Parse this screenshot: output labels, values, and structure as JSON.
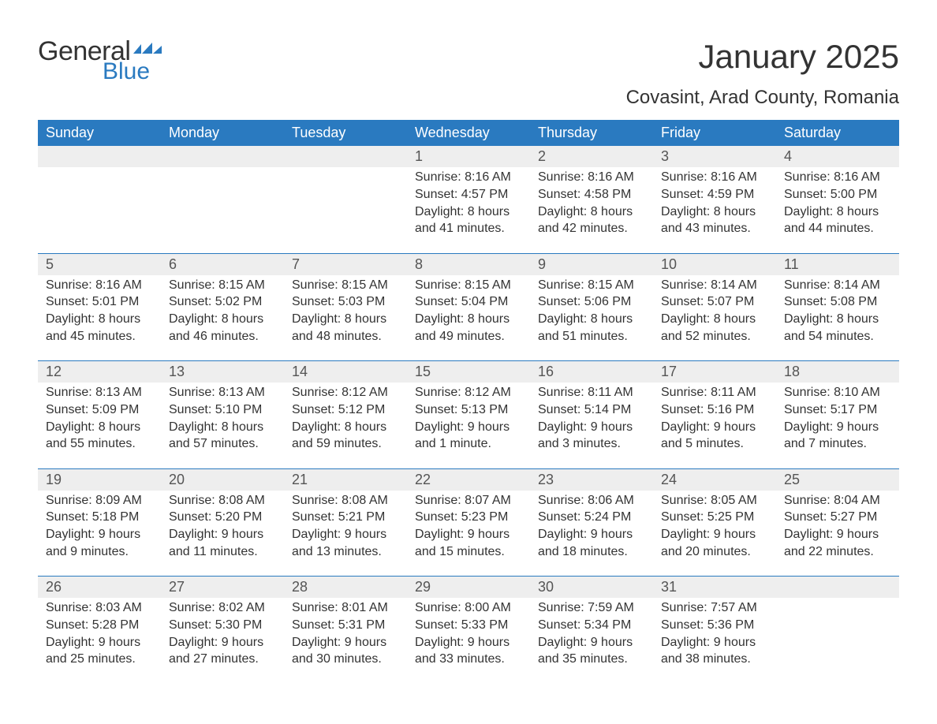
{
  "brand": {
    "general": "General",
    "blue": "Blue"
  },
  "colors": {
    "header_bg": "#2a7ac0",
    "header_text": "#ffffff",
    "daynum_bg": "#eeeeee",
    "rule": "#2a7ac0",
    "body_text": "#333333",
    "page_bg": "#ffffff"
  },
  "title": "January 2025",
  "subtitle": "Covasint, Arad County, Romania",
  "daynames": [
    "Sunday",
    "Monday",
    "Tuesday",
    "Wednesday",
    "Thursday",
    "Friday",
    "Saturday"
  ],
  "weeks": [
    [
      null,
      null,
      null,
      {
        "n": "1",
        "sunrise": "8:16 AM",
        "sunset": "4:57 PM",
        "dh": "8",
        "dm": "41"
      },
      {
        "n": "2",
        "sunrise": "8:16 AM",
        "sunset": "4:58 PM",
        "dh": "8",
        "dm": "42"
      },
      {
        "n": "3",
        "sunrise": "8:16 AM",
        "sunset": "4:59 PM",
        "dh": "8",
        "dm": "43"
      },
      {
        "n": "4",
        "sunrise": "8:16 AM",
        "sunset": "5:00 PM",
        "dh": "8",
        "dm": "44"
      }
    ],
    [
      {
        "n": "5",
        "sunrise": "8:16 AM",
        "sunset": "5:01 PM",
        "dh": "8",
        "dm": "45"
      },
      {
        "n": "6",
        "sunrise": "8:15 AM",
        "sunset": "5:02 PM",
        "dh": "8",
        "dm": "46"
      },
      {
        "n": "7",
        "sunrise": "8:15 AM",
        "sunset": "5:03 PM",
        "dh": "8",
        "dm": "48"
      },
      {
        "n": "8",
        "sunrise": "8:15 AM",
        "sunset": "5:04 PM",
        "dh": "8",
        "dm": "49"
      },
      {
        "n": "9",
        "sunrise": "8:15 AM",
        "sunset": "5:06 PM",
        "dh": "8",
        "dm": "51"
      },
      {
        "n": "10",
        "sunrise": "8:14 AM",
        "sunset": "5:07 PM",
        "dh": "8",
        "dm": "52"
      },
      {
        "n": "11",
        "sunrise": "8:14 AM",
        "sunset": "5:08 PM",
        "dh": "8",
        "dm": "54"
      }
    ],
    [
      {
        "n": "12",
        "sunrise": "8:13 AM",
        "sunset": "5:09 PM",
        "dh": "8",
        "dm": "55"
      },
      {
        "n": "13",
        "sunrise": "8:13 AM",
        "sunset": "5:10 PM",
        "dh": "8",
        "dm": "57"
      },
      {
        "n": "14",
        "sunrise": "8:12 AM",
        "sunset": "5:12 PM",
        "dh": "8",
        "dm": "59"
      },
      {
        "n": "15",
        "sunrise": "8:12 AM",
        "sunset": "5:13 PM",
        "dh": "9",
        "dm": "1",
        "singular": true
      },
      {
        "n": "16",
        "sunrise": "8:11 AM",
        "sunset": "5:14 PM",
        "dh": "9",
        "dm": "3"
      },
      {
        "n": "17",
        "sunrise": "8:11 AM",
        "sunset": "5:16 PM",
        "dh": "9",
        "dm": "5"
      },
      {
        "n": "18",
        "sunrise": "8:10 AM",
        "sunset": "5:17 PM",
        "dh": "9",
        "dm": "7"
      }
    ],
    [
      {
        "n": "19",
        "sunrise": "8:09 AM",
        "sunset": "5:18 PM",
        "dh": "9",
        "dm": "9"
      },
      {
        "n": "20",
        "sunrise": "8:08 AM",
        "sunset": "5:20 PM",
        "dh": "9",
        "dm": "11"
      },
      {
        "n": "21",
        "sunrise": "8:08 AM",
        "sunset": "5:21 PM",
        "dh": "9",
        "dm": "13"
      },
      {
        "n": "22",
        "sunrise": "8:07 AM",
        "sunset": "5:23 PM",
        "dh": "9",
        "dm": "15"
      },
      {
        "n": "23",
        "sunrise": "8:06 AM",
        "sunset": "5:24 PM",
        "dh": "9",
        "dm": "18"
      },
      {
        "n": "24",
        "sunrise": "8:05 AM",
        "sunset": "5:25 PM",
        "dh": "9",
        "dm": "20"
      },
      {
        "n": "25",
        "sunrise": "8:04 AM",
        "sunset": "5:27 PM",
        "dh": "9",
        "dm": "22"
      }
    ],
    [
      {
        "n": "26",
        "sunrise": "8:03 AM",
        "sunset": "5:28 PM",
        "dh": "9",
        "dm": "25"
      },
      {
        "n": "27",
        "sunrise": "8:02 AM",
        "sunset": "5:30 PM",
        "dh": "9",
        "dm": "27"
      },
      {
        "n": "28",
        "sunrise": "8:01 AM",
        "sunset": "5:31 PM",
        "dh": "9",
        "dm": "30"
      },
      {
        "n": "29",
        "sunrise": "8:00 AM",
        "sunset": "5:33 PM",
        "dh": "9",
        "dm": "33"
      },
      {
        "n": "30",
        "sunrise": "7:59 AM",
        "sunset": "5:34 PM",
        "dh": "9",
        "dm": "35"
      },
      {
        "n": "31",
        "sunrise": "7:57 AM",
        "sunset": "5:36 PM",
        "dh": "9",
        "dm": "38"
      },
      null
    ]
  ],
  "labels": {
    "sunrise": "Sunrise: ",
    "sunset": "Sunset: ",
    "daylight": "Daylight: ",
    "hours": " hours",
    "and": "and ",
    "minutes": " minutes.",
    "minute": " minute."
  }
}
